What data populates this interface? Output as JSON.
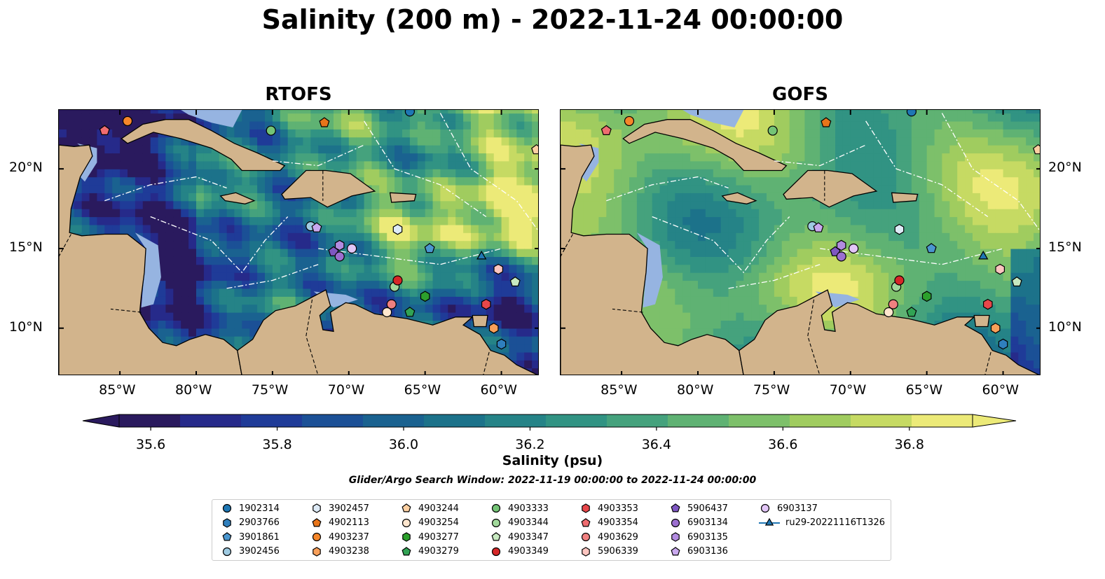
{
  "chart_data": {
    "type": "heatmap",
    "title": "Salinity (200 m) - 2022-11-24 00:00:00",
    "panels": [
      {
        "title": "RTOFS",
        "xlim": [
          -89,
          -57.5
        ],
        "ylim": [
          7,
          23.7
        ]
      },
      {
        "title": "GOFS",
        "xlim": [
          -89,
          -57.5
        ],
        "ylim": [
          7,
          23.7
        ]
      }
    ],
    "x_ticks": [
      "85°W",
      "80°W",
      "75°W",
      "70°W",
      "65°W",
      "60°W"
    ],
    "x_tick_values": [
      -85,
      -80,
      -75,
      -70,
      -65,
      -60
    ],
    "y_ticks": [
      "10°N",
      "15°N",
      "20°N"
    ],
    "y_tick_values": [
      10,
      15,
      20
    ],
    "colorbar": {
      "label": "Salinity (psu)",
      "ticks": [
        "35.6",
        "35.8",
        "36.0",
        "36.2",
        "36.4",
        "36.6",
        "36.8"
      ],
      "tick_values": [
        35.6,
        35.8,
        36.0,
        36.2,
        36.4,
        36.6,
        36.8
      ],
      "range": [
        35.55,
        36.9
      ],
      "levels": 14,
      "extend": "both"
    },
    "subtitle": "Glider/Argo Search Window: 2022-11-19 00:00:00 to 2022-11-24 00:00:00",
    "legend_columns": 7,
    "platforms": [
      {
        "name": "1902314",
        "marker": "circle",
        "color": "#1f77b4",
        "lon": -66.0,
        "lat": 23.6
      },
      {
        "name": "2903766",
        "marker": "hexagon",
        "color": "#2f7fbd",
        "lon": -60.0,
        "lat": 9.0
      },
      {
        "name": "3901861",
        "marker": "pentagon",
        "color": "#4a96cf",
        "lon": -64.7,
        "lat": 15.0
      },
      {
        "name": "3902456",
        "marker": "circle",
        "color": "#9ecae1",
        "lon": -72.5,
        "lat": 16.4
      },
      {
        "name": "3902457",
        "marker": "hexagon",
        "color": "#deebf7",
        "lon": -66.8,
        "lat": 16.2
      },
      {
        "name": "4902113",
        "marker": "pentagon",
        "color": "#e8751a",
        "lon": -71.6,
        "lat": 22.9
      },
      {
        "name": "4903237",
        "marker": "circle",
        "color": "#f5862a",
        "lon": -84.5,
        "lat": 23.0
      },
      {
        "name": "4903238",
        "marker": "hexagon",
        "color": "#f9a05a",
        "lon": -60.5,
        "lat": 10.0
      },
      {
        "name": "4903244",
        "marker": "pentagon",
        "color": "#fdd0a2",
        "lon": -57.7,
        "lat": 21.2
      },
      {
        "name": "4903254",
        "marker": "circle",
        "color": "#fee6ce",
        "lon": -67.5,
        "lat": 11.0
      },
      {
        "name": "4903277",
        "marker": "hexagon",
        "color": "#2ca02c",
        "lon": -65.0,
        "lat": 12.0
      },
      {
        "name": "4903279",
        "marker": "pentagon",
        "color": "#31a354",
        "lon": -66.0,
        "lat": 11.0
      },
      {
        "name": "4903333",
        "marker": "circle",
        "color": "#74c476",
        "lon": -75.1,
        "lat": 22.4
      },
      {
        "name": "4903344",
        "marker": "circle",
        "color": "#a1d99b",
        "lon": -67.0,
        "lat": 12.6
      },
      {
        "name": "4903347",
        "marker": "pentagon",
        "color": "#c7e9c0",
        "lon": -59.1,
        "lat": 12.9
      },
      {
        "name": "4903349",
        "marker": "circle",
        "color": "#d62728",
        "lon": -66.8,
        "lat": 13.0
      },
      {
        "name": "4903353",
        "marker": "hexagon",
        "color": "#e8474a",
        "lon": -61.0,
        "lat": 11.5
      },
      {
        "name": "4903354",
        "marker": "pentagon",
        "color": "#ef6c70",
        "lon": -86.0,
        "lat": 22.4
      },
      {
        "name": "4903629",
        "marker": "circle",
        "color": "#f08080",
        "lon": -67.2,
        "lat": 11.5
      },
      {
        "name": "5906339",
        "marker": "hexagon",
        "color": "#fcc5c0",
        "lon": -60.2,
        "lat": 13.7
      },
      {
        "name": "5906437",
        "marker": "pentagon",
        "color": "#7e57c2",
        "lon": -71.0,
        "lat": 14.8
      },
      {
        "name": "6903134",
        "marker": "circle",
        "color": "#9c6fd0",
        "lon": -70.6,
        "lat": 14.5
      },
      {
        "name": "6903135",
        "marker": "hexagon",
        "color": "#b28be0",
        "lon": -70.6,
        "lat": 15.2
      },
      {
        "name": "6903136",
        "marker": "pentagon",
        "color": "#c9a8ee",
        "lon": -72.1,
        "lat": 16.3
      },
      {
        "name": "6903137",
        "marker": "circle",
        "color": "#e2c6f7",
        "lon": -69.8,
        "lat": 15.0
      },
      {
        "name": "ru29-20221116T1326",
        "marker": "triangle",
        "color": "#1f77b4",
        "lon": -61.3,
        "lat": 14.5,
        "line": true
      }
    ]
  },
  "colors": {
    "land": "#d2b48c",
    "shelf": "#96b4e1",
    "colormap": [
      "#2a1a5e",
      "#262a8a",
      "#1f3b98",
      "#1b5096",
      "#1a6290",
      "#1c728a",
      "#258387",
      "#319383",
      "#45a27d",
      "#5fb273",
      "#7dc06a",
      "#a0cc5f",
      "#c6da63",
      "#ecea78"
    ]
  }
}
